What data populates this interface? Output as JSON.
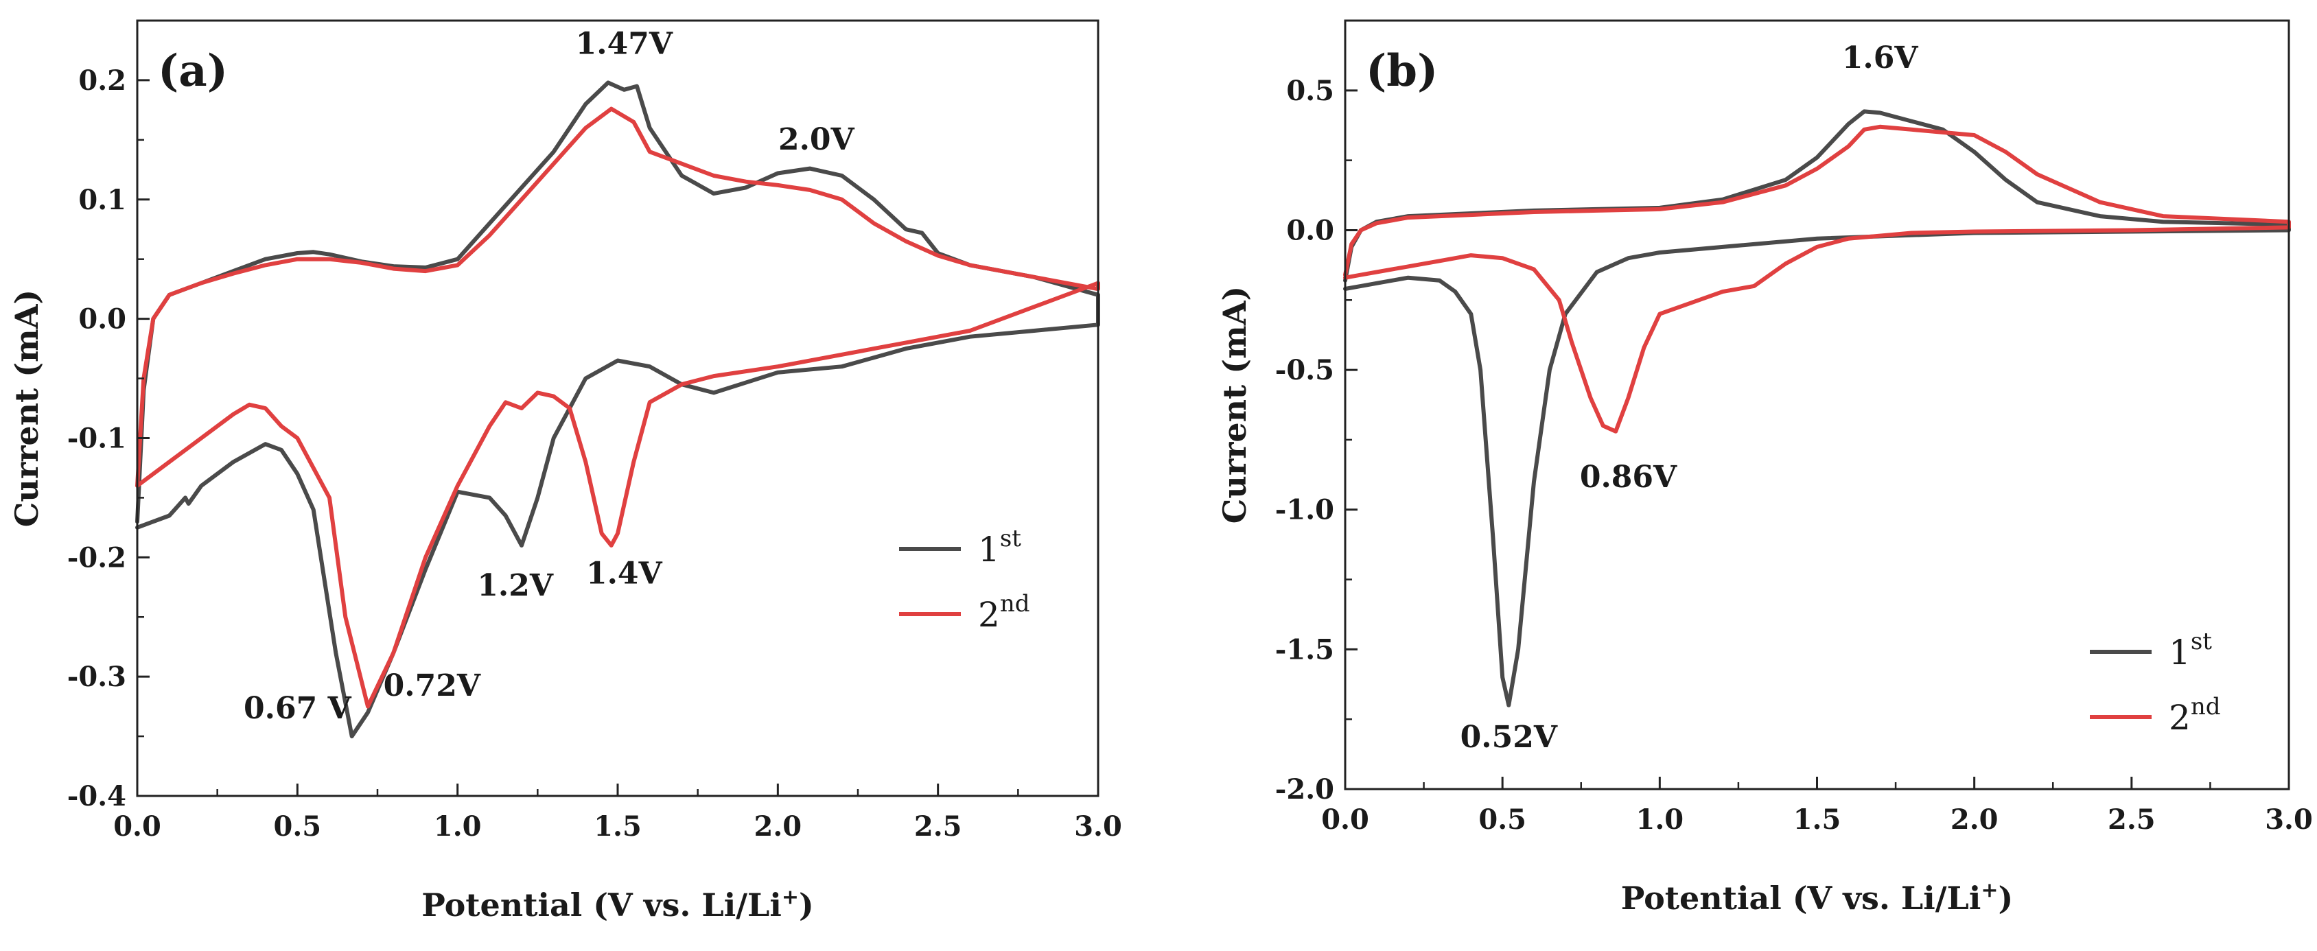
{
  "chart_data": [
    {
      "type": "line",
      "panel_label": "(a)",
      "xlabel_main": "Potential (V vs. Li/Li",
      "xlabel_sup": "+",
      "xlabel_end": ")",
      "ylabel": "Current (mA)",
      "xlim": [
        0,
        3.0
      ],
      "ylim": [
        -0.4,
        0.25
      ],
      "xticks": [
        0.0,
        0.5,
        1.0,
        1.5,
        2.0,
        2.5,
        3.0
      ],
      "xtick_labels": [
        "0.0",
        "0.5",
        "1.0",
        "1.5",
        "2.0",
        "2.5",
        "3.0"
      ],
      "yticks": [
        -0.4,
        -0.3,
        -0.2,
        -0.1,
        0.0,
        0.1,
        0.2
      ],
      "ytick_labels": [
        "-0.4",
        "-0.3",
        "-0.2",
        "-0.1",
        "0.0",
        "0.1",
        "0.2"
      ],
      "legend_position": "bottom-right",
      "legend": [
        {
          "base": "1",
          "sup": "st",
          "color": "#4a4a4a"
        },
        {
          "base": "2",
          "sup": "nd",
          "color": "#e04040"
        }
      ],
      "annotations": [
        {
          "text": "1.47V",
          "x": 1.52,
          "y": 0.222
        },
        {
          "text": "2.0V",
          "x": 2.12,
          "y": 0.142
        },
        {
          "text": "1.2V",
          "x": 1.18,
          "y": -0.232
        },
        {
          "text": "1.4V",
          "x": 1.52,
          "y": -0.222
        },
        {
          "text": "0.67 V",
          "x": 0.5,
          "y": -0.335
        },
        {
          "text": "0.72V",
          "x": 0.92,
          "y": -0.316
        }
      ],
      "series": [
        {
          "name": "1st",
          "color": "#4a4a4a",
          "x": [
            0.0,
            0.02,
            0.05,
            0.1,
            0.2,
            0.3,
            0.4,
            0.5,
            0.55,
            0.6,
            0.7,
            0.8,
            0.9,
            1.0,
            1.1,
            1.2,
            1.3,
            1.4,
            1.47,
            1.52,
            1.56,
            1.6,
            1.7,
            1.8,
            1.9,
            2.0,
            2.1,
            2.2,
            2.3,
            2.4,
            2.45,
            2.5,
            2.6,
            2.8,
            3.0,
            3.0,
            2.8,
            2.6,
            2.4,
            2.2,
            2.0,
            1.8,
            1.7,
            1.6,
            1.5,
            1.4,
            1.3,
            1.25,
            1.2,
            1.15,
            1.1,
            1.0,
            0.9,
            0.8,
            0.72,
            0.67,
            0.62,
            0.55,
            0.5,
            0.45,
            0.4,
            0.3,
            0.2,
            0.16,
            0.15,
            0.1,
            0.0
          ],
          "y": [
            -0.17,
            -0.06,
            0.0,
            0.02,
            0.03,
            0.04,
            0.05,
            0.055,
            0.056,
            0.054,
            0.048,
            0.044,
            0.043,
            0.05,
            0.08,
            0.11,
            0.14,
            0.18,
            0.198,
            0.192,
            0.195,
            0.16,
            0.12,
            0.105,
            0.11,
            0.122,
            0.126,
            0.12,
            0.1,
            0.075,
            0.072,
            0.055,
            0.045,
            0.035,
            0.02,
            -0.005,
            -0.01,
            -0.015,
            -0.025,
            -0.04,
            -0.045,
            -0.062,
            -0.055,
            -0.04,
            -0.035,
            -0.05,
            -0.1,
            -0.15,
            -0.19,
            -0.165,
            -0.15,
            -0.145,
            -0.21,
            -0.28,
            -0.33,
            -0.35,
            -0.28,
            -0.16,
            -0.13,
            -0.11,
            -0.105,
            -0.12,
            -0.14,
            -0.155,
            -0.15,
            -0.165,
            -0.175
          ]
        },
        {
          "name": "2nd",
          "color": "#e04040",
          "x": [
            0.0,
            0.02,
            0.05,
            0.1,
            0.2,
            0.3,
            0.4,
            0.5,
            0.6,
            0.7,
            0.8,
            0.9,
            1.0,
            1.1,
            1.2,
            1.3,
            1.4,
            1.48,
            1.55,
            1.6,
            1.7,
            1.8,
            1.9,
            2.0,
            2.1,
            2.2,
            2.3,
            2.4,
            2.5,
            2.6,
            2.8,
            3.0,
            3.0,
            2.8,
            2.6,
            2.4,
            2.2,
            2.0,
            1.8,
            1.7,
            1.6,
            1.55,
            1.5,
            1.48,
            1.45,
            1.4,
            1.35,
            1.3,
            1.25,
            1.2,
            1.15,
            1.1,
            1.0,
            0.9,
            0.8,
            0.72,
            0.65,
            0.6,
            0.5,
            0.45,
            0.4,
            0.35,
            0.3,
            0.2,
            0.1,
            0.0
          ],
          "y": [
            -0.14,
            -0.05,
            0.0,
            0.02,
            0.03,
            0.038,
            0.045,
            0.05,
            0.05,
            0.047,
            0.042,
            0.04,
            0.045,
            0.07,
            0.1,
            0.13,
            0.16,
            0.176,
            0.165,
            0.14,
            0.13,
            0.12,
            0.115,
            0.112,
            0.108,
            0.1,
            0.08,
            0.065,
            0.053,
            0.045,
            0.035,
            0.025,
            0.03,
            0.01,
            -0.01,
            -0.02,
            -0.03,
            -0.04,
            -0.048,
            -0.055,
            -0.07,
            -0.12,
            -0.18,
            -0.19,
            -0.18,
            -0.12,
            -0.075,
            -0.065,
            -0.062,
            -0.075,
            -0.07,
            -0.09,
            -0.14,
            -0.2,
            -0.28,
            -0.325,
            -0.25,
            -0.15,
            -0.1,
            -0.09,
            -0.075,
            -0.072,
            -0.08,
            -0.1,
            -0.12,
            -0.14
          ]
        }
      ]
    },
    {
      "type": "line",
      "panel_label": "(b)",
      "xlabel_main": "Potential (V vs. Li/Li",
      "xlabel_sup": "+",
      "xlabel_end": ")",
      "ylabel": "Current (mA)",
      "xlim": [
        0,
        3.0
      ],
      "ylim": [
        -2.0,
        0.75
      ],
      "xticks": [
        0.0,
        0.5,
        1.0,
        1.5,
        2.0,
        2.5,
        3.0
      ],
      "xtick_labels": [
        "0.0",
        "0.5",
        "1.0",
        "1.5",
        "2.0",
        "2.5",
        "3.0"
      ],
      "yticks": [
        -2.0,
        -1.5,
        -1.0,
        -0.5,
        0.0,
        0.5
      ],
      "ytick_labels": [
        "-2.0",
        "-1.5",
        "-1.0",
        "-0.5",
        "0.0",
        "0.5"
      ],
      "legend_position": "bottom-right",
      "legend": [
        {
          "base": "1",
          "sup": "st",
          "color": "#4a4a4a"
        },
        {
          "base": "2",
          "sup": "nd",
          "color": "#e04040"
        }
      ],
      "annotations": [
        {
          "text": "1.6V",
          "x": 1.7,
          "y": 0.58
        },
        {
          "text": "0.86V",
          "x": 0.9,
          "y": -0.92
        },
        {
          "text": "0.52V",
          "x": 0.52,
          "y": -1.85
        }
      ],
      "series": [
        {
          "name": "1st",
          "color": "#4a4a4a",
          "x": [
            0.0,
            0.02,
            0.05,
            0.1,
            0.2,
            0.4,
            0.6,
            0.8,
            1.0,
            1.2,
            1.4,
            1.5,
            1.6,
            1.65,
            1.7,
            1.8,
            1.9,
            2.0,
            2.1,
            2.2,
            2.4,
            2.6,
            3.0,
            3.0,
            2.5,
            2.0,
            1.5,
            1.2,
            1.0,
            0.9,
            0.8,
            0.7,
            0.65,
            0.6,
            0.55,
            0.52,
            0.5,
            0.47,
            0.43,
            0.4,
            0.35,
            0.3,
            0.2,
            0.1,
            0.05,
            0.0
          ],
          "y": [
            -0.18,
            -0.06,
            0.0,
            0.03,
            0.05,
            0.06,
            0.07,
            0.075,
            0.08,
            0.11,
            0.18,
            0.26,
            0.38,
            0.425,
            0.42,
            0.39,
            0.36,
            0.28,
            0.18,
            0.1,
            0.05,
            0.03,
            0.02,
            0.0,
            -0.005,
            -0.01,
            -0.03,
            -0.06,
            -0.08,
            -0.1,
            -0.15,
            -0.3,
            -0.5,
            -0.9,
            -1.5,
            -1.7,
            -1.6,
            -1.1,
            -0.5,
            -0.3,
            -0.22,
            -0.18,
            -0.17,
            -0.19,
            -0.2,
            -0.21
          ]
        },
        {
          "name": "2nd",
          "color": "#e04040",
          "x": [
            0.0,
            0.02,
            0.05,
            0.1,
            0.2,
            0.4,
            0.6,
            0.8,
            1.0,
            1.2,
            1.4,
            1.5,
            1.6,
            1.65,
            1.7,
            1.8,
            1.9,
            2.0,
            2.1,
            2.2,
            2.4,
            2.6,
            3.0,
            3.0,
            2.5,
            2.0,
            1.8,
            1.6,
            1.5,
            1.4,
            1.3,
            1.2,
            1.1,
            1.0,
            0.95,
            0.9,
            0.86,
            0.82,
            0.78,
            0.72,
            0.68,
            0.6,
            0.5,
            0.4,
            0.3,
            0.2,
            0.1,
            0.05,
            0.0
          ],
          "y": [
            -0.16,
            -0.05,
            0.0,
            0.025,
            0.045,
            0.055,
            0.065,
            0.07,
            0.075,
            0.1,
            0.16,
            0.22,
            0.3,
            0.36,
            0.37,
            0.36,
            0.35,
            0.34,
            0.28,
            0.2,
            0.1,
            0.05,
            0.03,
            0.01,
            0.0,
            -0.005,
            -0.01,
            -0.03,
            -0.06,
            -0.12,
            -0.2,
            -0.22,
            -0.26,
            -0.3,
            -0.42,
            -0.6,
            -0.72,
            -0.7,
            -0.6,
            -0.4,
            -0.25,
            -0.14,
            -0.1,
            -0.09,
            -0.11,
            -0.13,
            -0.15,
            -0.16,
            -0.17
          ]
        }
      ]
    }
  ]
}
